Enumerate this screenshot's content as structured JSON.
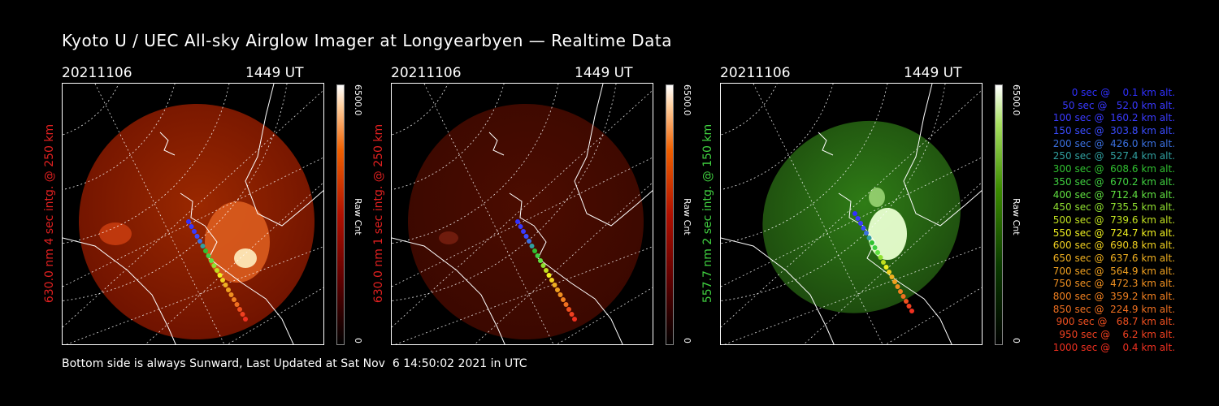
{
  "title": "Kyoto U / UEC All-sky Airglow Imager at Longyearbyen — Realtime Data",
  "panels": [
    {
      "date": "20211106",
      "ut": "1449 UT",
      "ylabel": "630.0 nm 4 sec intg. @ 250 km",
      "label_color": "#e02020",
      "colorbar_max": "6500.0",
      "colorbar_min": "0",
      "colorbar_label": "Raw Cnt",
      "brightness": "bright red",
      "colormap": "red"
    },
    {
      "date": "20211106",
      "ut": "1449 UT",
      "ylabel": "630.0 nm 1 sec intg. @ 250 km",
      "label_color": "#e02020",
      "colorbar_max": "6500.0",
      "colorbar_min": "0",
      "colorbar_label": "Raw Cnt",
      "brightness": "dim red",
      "colormap": "red"
    },
    {
      "date": "20211106",
      "ut": "1449 UT",
      "ylabel": "557.7 nm 2 sec intg. @ 150 km",
      "label_color": "#40d040",
      "colorbar_max": "6500.0",
      "colorbar_min": "0",
      "colorbar_label": "Raw Cnt",
      "brightness": "green",
      "colormap": "green"
    }
  ],
  "legend": [
    {
      "text": "0 sec @    0.1 km alt.",
      "color": "#3030ff"
    },
    {
      "text": "50 sec @   52.0 km alt.",
      "color": "#3838ff"
    },
    {
      "text": "100 sec @  160.2 km alt.",
      "color": "#3a3aff"
    },
    {
      "text": "150 sec @  303.8 km alt.",
      "color": "#3a4cff"
    },
    {
      "text": "200 sec @  426.0 km alt.",
      "color": "#3a70e0"
    },
    {
      "text": "250 sec @  527.4 km alt.",
      "color": "#30a0a0"
    },
    {
      "text": "300 sec @  608.6 km alt.",
      "color": "#30c030"
    },
    {
      "text": "350 sec @  670.2 km alt.",
      "color": "#40d040"
    },
    {
      "text": "400 sec @  712.4 km alt.",
      "color": "#60e040"
    },
    {
      "text": "450 sec @  735.5 km alt.",
      "color": "#90e030"
    },
    {
      "text": "500 sec @  739.6 km alt.",
      "color": "#c0e020"
    },
    {
      "text": "550 sec @  724.7 km alt.",
      "color": "#f0f020"
    },
    {
      "text": "600 sec @  690.8 km alt.",
      "color": "#f0d020"
    },
    {
      "text": "650 sec @  637.6 km alt.",
      "color": "#f0b020"
    },
    {
      "text": "700 sec @  564.9 km alt.",
      "color": "#f0a020"
    },
    {
      "text": "750 sec @  472.3 km alt.",
      "color": "#f09020"
    },
    {
      "text": "800 sec @  359.2 km alt.",
      "color": "#f08020"
    },
    {
      "text": "850 sec @  224.9 km alt.",
      "color": "#f07020"
    },
    {
      "text": "900 sec @   68.7 km alt.",
      "color": "#f05020"
    },
    {
      "text": "950 sec @    6.2 km alt.",
      "color": "#f04020"
    },
    {
      "text": "1000 sec @    0.4 km alt.",
      "color": "#f03020"
    }
  ],
  "footer": "Bottom side is always Sunward, Last Updated at Sat Nov  6 14:50:02 2021 in UTC"
}
